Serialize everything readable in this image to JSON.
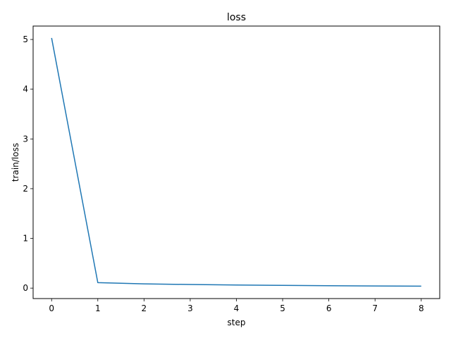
{
  "chart_data": {
    "type": "line",
    "title": "loss",
    "xlabel": "step",
    "ylabel": "train/loss",
    "x": [
      0,
      1,
      2,
      3,
      4,
      5,
      6,
      7,
      8
    ],
    "series": [
      {
        "values": [
          5.03,
          0.11,
          0.085,
          0.073,
          0.063,
          0.055,
          0.048,
          0.043,
          0.039
        ],
        "color": "#1f77b4"
      }
    ],
    "xlim": [
      -0.4,
      8.4
    ],
    "ylim": [
      -0.21,
      5.27
    ],
    "xticks": [
      0,
      1,
      2,
      3,
      4,
      5,
      6,
      7,
      8
    ],
    "yticks": [
      0,
      1,
      2,
      3,
      4,
      5
    ],
    "xtick_labels": [
      "0",
      "1",
      "2",
      "3",
      "4",
      "5",
      "6",
      "7",
      "8"
    ],
    "ytick_labels": [
      "0",
      "1",
      "2",
      "3",
      "4",
      "5"
    ],
    "grid": false,
    "legend": "none"
  }
}
